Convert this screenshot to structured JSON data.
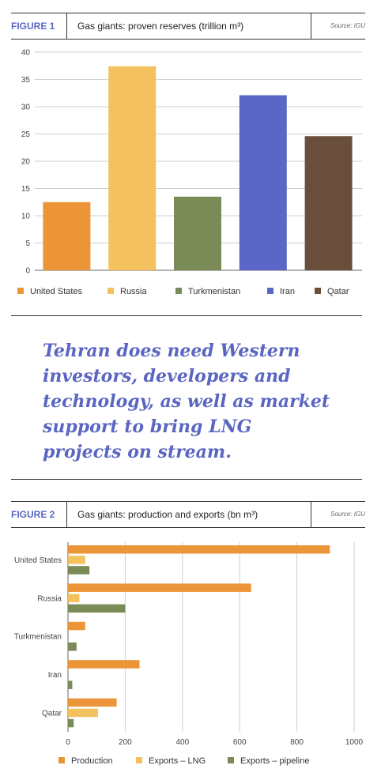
{
  "figure1": {
    "tag": "FIGURE 1",
    "title": "Gas giants: proven reserves (trillion m³)",
    "source": "Source: IGU",
    "chart_data": {
      "type": "bar",
      "title": "Gas giants: proven reserves (trillion m³)",
      "categories": [
        "United States",
        "Russia",
        "Turkmenistan",
        "Iran",
        "Qatar"
      ],
      "values": [
        12.5,
        37.4,
        13.5,
        32.1,
        24.6
      ],
      "colors": [
        "#ec9438",
        "#f3c25e",
        "#7b8b58",
        "#5b67c7",
        "#6a4e3c"
      ],
      "ylim": [
        0,
        40
      ],
      "yticks": [
        0,
        5,
        10,
        15,
        20,
        25,
        30,
        35,
        40
      ],
      "grid": true,
      "legend": "bottom"
    }
  },
  "quote": {
    "text": "Tehran does need Western investors, developers and technology, as well as market support to bring LNG projects on stream."
  },
  "figure2": {
    "tag": "FIGURE 2",
    "title": "Gas giants: production and exports (bn m³)",
    "source": "Source: IGU",
    "chart_data": {
      "type": "bar",
      "orientation": "horizontal",
      "title": "Gas giants: production and exports (bn m³)",
      "categories": [
        "United States",
        "Russia",
        "Turkmenistan",
        "Iran",
        "Qatar"
      ],
      "series": [
        {
          "name": "Production",
          "color": "#ec9438",
          "values": [
            915,
            640,
            60,
            250,
            170
          ]
        },
        {
          "name": "Exports – LNG",
          "color": "#f3c25e",
          "values": [
            60,
            40,
            0,
            0,
            105
          ]
        },
        {
          "name": "Exports – pipeline",
          "color": "#7b8b58",
          "values": [
            75,
            200,
            30,
            15,
            20
          ]
        }
      ],
      "xlim": [
        0,
        1000
      ],
      "xticks": [
        0,
        200,
        400,
        600,
        800,
        1000
      ],
      "grid": true,
      "legend": "bottom"
    }
  }
}
